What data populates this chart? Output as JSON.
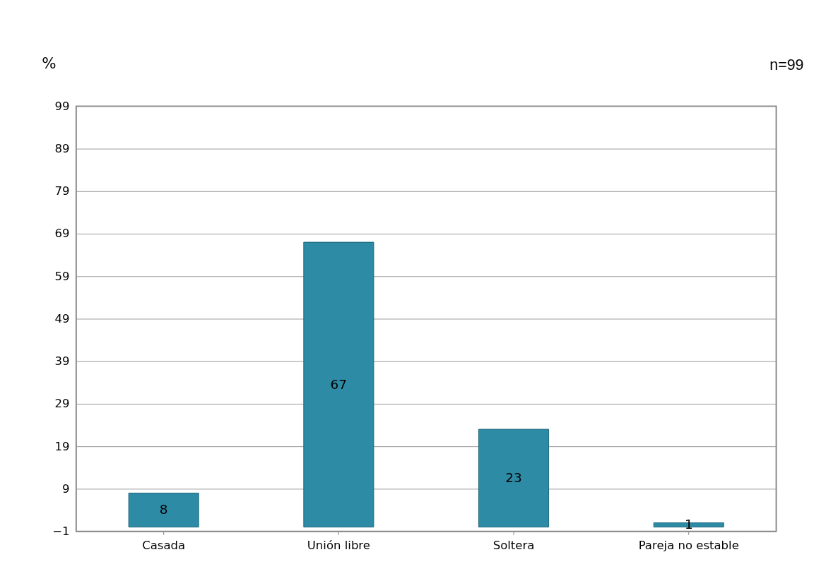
{
  "chart_data": {
    "type": "bar",
    "categories": [
      "Casada",
      "Unión libre",
      "Soltera",
      "Pareja no estable"
    ],
    "values": [
      8,
      67,
      23,
      1
    ],
    "color": "#2e8ba6",
    "ylabel": "%",
    "annotations": [
      "n=99"
    ],
    "ylim": [
      -1,
      99
    ],
    "yticks": [
      -1,
      9,
      19,
      29,
      39,
      49,
      59,
      69,
      79,
      89,
      99
    ],
    "grid": "y",
    "data_labels": true
  }
}
